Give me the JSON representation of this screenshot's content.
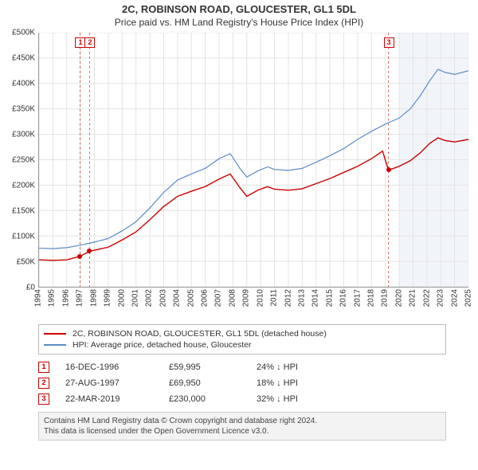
{
  "titles": {
    "main": "2C, ROBINSON ROAD, GLOUCESTER, GL1 5DL",
    "sub": "Price paid vs. HM Land Registry's House Price Index (HPI)"
  },
  "chart": {
    "type": "line",
    "background_color": "#ffffff",
    "grid_color": "#e3e3e3",
    "axis_color": "#999999",
    "tick_fontsize": 10,
    "x": {
      "min": 1994,
      "max": 2025,
      "years": [
        1994,
        1995,
        1996,
        1997,
        1998,
        1999,
        2000,
        2001,
        2002,
        2003,
        2004,
        2005,
        2006,
        2007,
        2008,
        2009,
        2010,
        2011,
        2012,
        2013,
        2014,
        2015,
        2016,
        2017,
        2018,
        2019,
        2020,
        2021,
        2022,
        2023,
        2024,
        2025
      ]
    },
    "y": {
      "min": 0,
      "max": 500000,
      "step": 50000,
      "labels": [
        "£0",
        "£50K",
        "£100K",
        "£150K",
        "£200K",
        "£250K",
        "£300K",
        "£350K",
        "£400K",
        "£450K",
        "£500K"
      ]
    },
    "shaded_from_year": 2020,
    "vlines": {
      "color": "#e06666",
      "dash": "3,3",
      "years": [
        1996.96,
        1997.65,
        2019.22
      ]
    },
    "series": [
      {
        "id": "property",
        "label": "2C, ROBINSON ROAD, GLOUCESTER, GL1 5DL (detached house)",
        "color": "#cc0000",
        "line_width": 1.4,
        "points": [
          [
            1994.0,
            53000
          ],
          [
            1995.0,
            52000
          ],
          [
            1996.0,
            53000
          ],
          [
            1996.96,
            59995
          ],
          [
            1997.65,
            69950
          ],
          [
            1998.0,
            72000
          ],
          [
            1999.0,
            78000
          ],
          [
            2000.0,
            92000
          ],
          [
            2001.0,
            108000
          ],
          [
            2002.0,
            132000
          ],
          [
            2003.0,
            158000
          ],
          [
            2004.0,
            178000
          ],
          [
            2005.0,
            188000
          ],
          [
            2006.0,
            197000
          ],
          [
            2007.0,
            212000
          ],
          [
            2007.8,
            222000
          ],
          [
            2008.5,
            195000
          ],
          [
            2009.0,
            178000
          ],
          [
            2009.8,
            190000
          ],
          [
            2010.5,
            197000
          ],
          [
            2011.0,
            192000
          ],
          [
            2012.0,
            190000
          ],
          [
            2013.0,
            193000
          ],
          [
            2014.0,
            203000
          ],
          [
            2015.0,
            213000
          ],
          [
            2016.0,
            225000
          ],
          [
            2017.0,
            237000
          ],
          [
            2018.0,
            252000
          ],
          [
            2018.8,
            267000
          ],
          [
            2019.22,
            230000
          ],
          [
            2019.5,
            232000
          ],
          [
            2020.0,
            237000
          ],
          [
            2020.8,
            248000
          ],
          [
            2021.5,
            263000
          ],
          [
            2022.2,
            282000
          ],
          [
            2022.8,
            293000
          ],
          [
            2023.3,
            288000
          ],
          [
            2024.0,
            285000
          ],
          [
            2025.0,
            290000
          ]
        ]
      },
      {
        "id": "hpi",
        "label": "HPI: Average price, detached house, Gloucester",
        "color": "#5b8cc8",
        "line_width": 1.2,
        "points": [
          [
            1994.0,
            76000
          ],
          [
            1995.0,
            75000
          ],
          [
            1996.0,
            77000
          ],
          [
            1997.0,
            82000
          ],
          [
            1998.0,
            88000
          ],
          [
            1999.0,
            95000
          ],
          [
            2000.0,
            110000
          ],
          [
            2001.0,
            128000
          ],
          [
            2002.0,
            155000
          ],
          [
            2003.0,
            186000
          ],
          [
            2004.0,
            210000
          ],
          [
            2005.0,
            222000
          ],
          [
            2006.0,
            233000
          ],
          [
            2007.0,
            252000
          ],
          [
            2007.8,
            262000
          ],
          [
            2008.5,
            233000
          ],
          [
            2009.0,
            216000
          ],
          [
            2009.8,
            228000
          ],
          [
            2010.5,
            236000
          ],
          [
            2011.0,
            231000
          ],
          [
            2012.0,
            229000
          ],
          [
            2013.0,
            233000
          ],
          [
            2014.0,
            245000
          ],
          [
            2015.0,
            258000
          ],
          [
            2016.0,
            272000
          ],
          [
            2017.0,
            290000
          ],
          [
            2018.0,
            306000
          ],
          [
            2019.0,
            320000
          ],
          [
            2020.0,
            332000
          ],
          [
            2020.8,
            350000
          ],
          [
            2021.5,
            375000
          ],
          [
            2022.2,
            405000
          ],
          [
            2022.8,
            428000
          ],
          [
            2023.3,
            422000
          ],
          [
            2024.0,
            418000
          ],
          [
            2025.0,
            425000
          ]
        ]
      }
    ],
    "markers": [
      {
        "n": "1",
        "year": 1996.96,
        "price": 59995
      },
      {
        "n": "2",
        "year": 1997.65,
        "price": 69950
      },
      {
        "n": "3",
        "year": 2019.22,
        "price": 230000
      }
    ]
  },
  "legend": {
    "border_color": "#bbbbbb",
    "entries": [
      {
        "color": "#cc0000",
        "text": "2C, ROBINSON ROAD, GLOUCESTER, GL1 5DL (detached house)"
      },
      {
        "color": "#5b8cc8",
        "text": "HPI: Average price, detached house, Gloucester"
      }
    ]
  },
  "transactions": [
    {
      "n": "1",
      "date": "16-DEC-1996",
      "price": "£59,995",
      "diff": "24% ↓ HPI"
    },
    {
      "n": "2",
      "date": "27-AUG-1997",
      "price": "£69,950",
      "diff": "18% ↓ HPI"
    },
    {
      "n": "3",
      "date": "22-MAR-2019",
      "price": "£230,000",
      "diff": "32% ↓ HPI"
    }
  ],
  "license": {
    "line1": "Contains HM Land Registry data © Crown copyright and database right 2024.",
    "line2": "This data is licensed under the Open Government Licence v3.0."
  }
}
